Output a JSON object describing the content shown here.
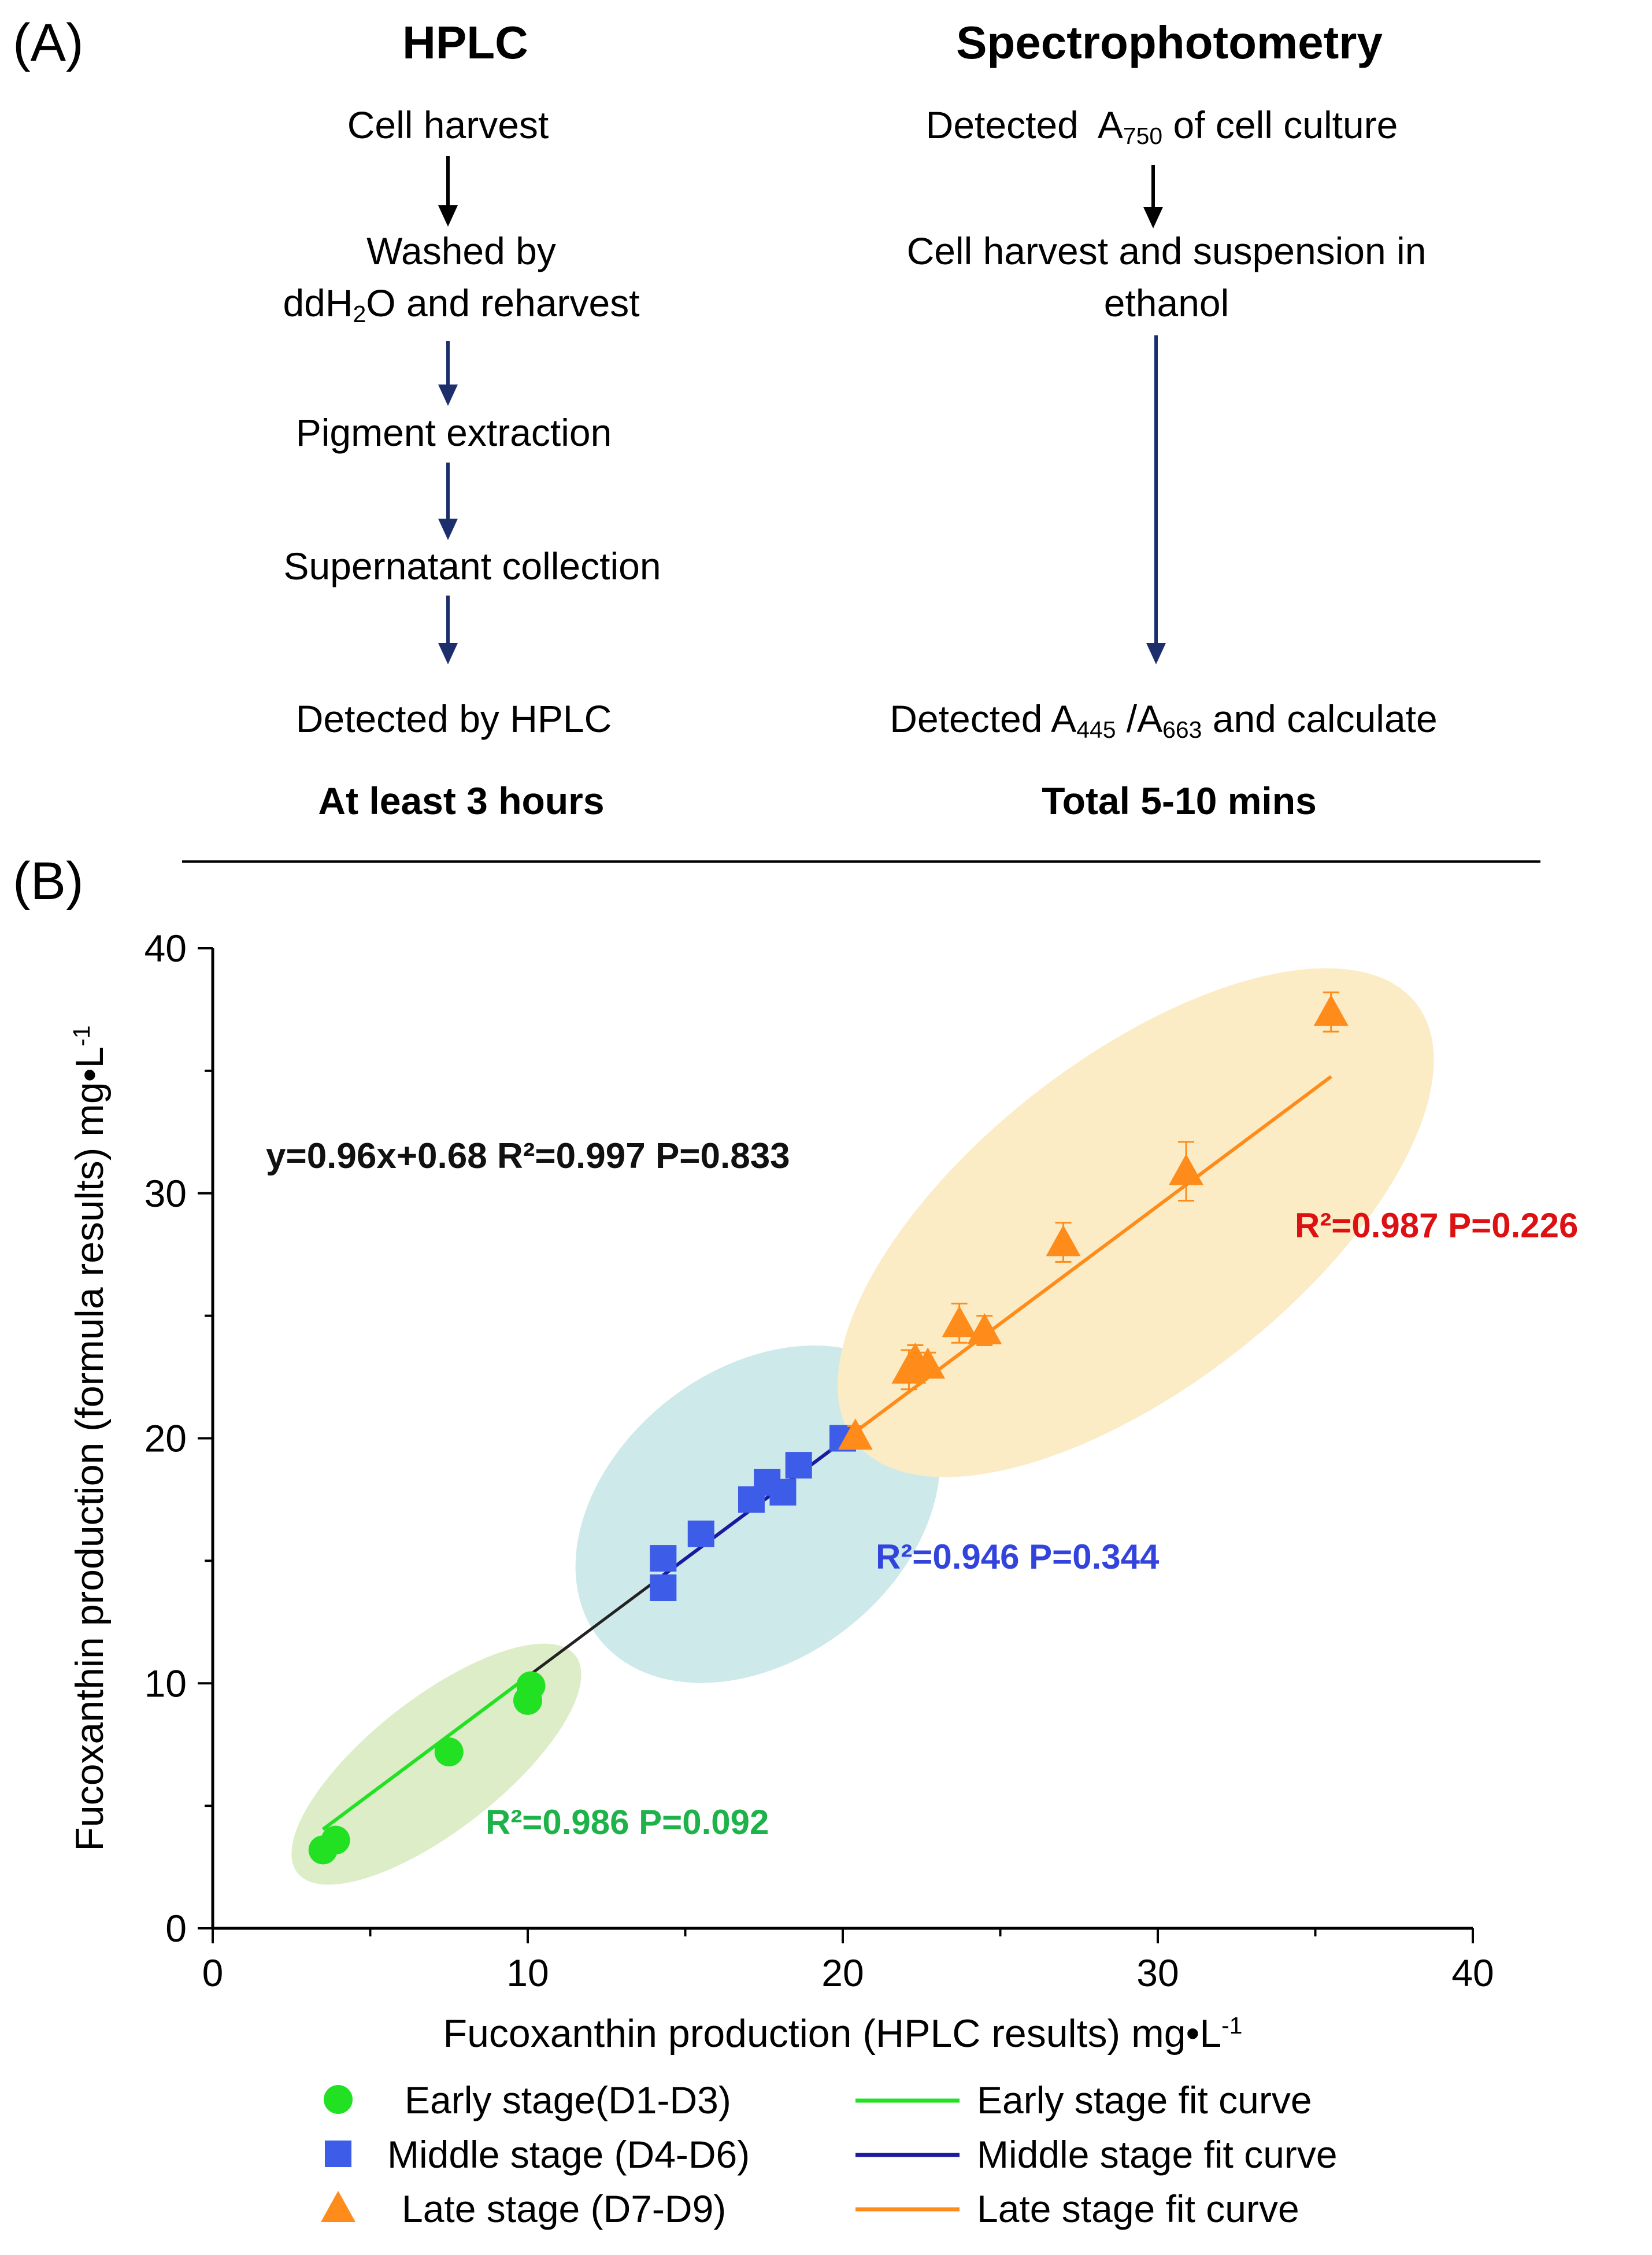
{
  "panel_a": {
    "label": "(A)",
    "hplc": {
      "heading": "HPLC",
      "steps": [
        "Cell harvest",
        "Washed by",
        "and reharvest",
        "Pigment extraction",
        "Supernatant collection",
        "Detected by HPLC"
      ],
      "dd_prefix": "ddH",
      "dd_sub": "2",
      "dd_o": "O",
      "time": "At least 3 hours"
    },
    "spectro": {
      "heading": "Spectrophotometry",
      "step1_prefix": "Detected  A",
      "step1_sub": "750",
      "step1_suffix": " of cell culture",
      "step2_line1": "Cell harvest and suspension in",
      "step2_line2": "ethanol",
      "step3_prefix": "Detected A",
      "step3_sub1": "445",
      "step3_mid": " /A",
      "step3_sub2": "663",
      "step3_suffix": " and calculate",
      "time": "Total 5-10 mins"
    },
    "arrow_colors": {
      "black": "#000000",
      "navy": "#1c2e6b"
    }
  },
  "panel_b": {
    "label": "(B)",
    "x_label": "Fucoxanthin production (HPLC results) mg•L",
    "x_label_sup": "-1",
    "y_label": "Fucoxanthin production (formula results) mg•L",
    "y_label_sup": "-1",
    "equation": "y=0.96x+0.68 R²=0.997  P=0.833",
    "r2_early": "R²=0.986 P=0.092",
    "r2_middle": "R²=0.946 P=0.344",
    "r2_late": "R²=0.987 P=0.226",
    "colors": {
      "early": "#22e022",
      "middle": "#3d5ce8",
      "late": "#ff8c1a",
      "early_label": "#1db34a",
      "middle_label": "#3344dd",
      "late_label": "#dd1111",
      "early_ellipse": "#dcedc8",
      "middle_ellipse": "#cde9ea",
      "late_ellipse": "#fbecc6",
      "overall_fit": "#222222",
      "middle_fit": "#1a1aa0"
    },
    "legend": {
      "early_marker": "Early stage(D1-D3)",
      "middle_marker": "Middle stage (D4-D6)",
      "late_marker": "Late stage (D7-D9)",
      "early_fit": "Early stage fit curve",
      "middle_fit": "Middle stage fit curve",
      "late_fit": "Late stage fit curve"
    }
  },
  "chart_data": {
    "type": "scatter",
    "title": "",
    "xlabel": "Fucoxanthin production (HPLC results) mg•L-1",
    "ylabel": "Fucoxanthin production (formula results) mg•L-1",
    "xlim": [
      0,
      40
    ],
    "ylim": [
      0,
      40
    ],
    "x_ticks": [
      0,
      10,
      20,
      30,
      40
    ],
    "y_ticks": [
      0,
      10,
      20,
      30,
      40
    ],
    "overall_fit": {
      "slope": 0.96,
      "intercept": 0.68,
      "x_range": [
        3.5,
        35.5
      ]
    },
    "series": [
      {
        "name": "Early stage(D1-D3)",
        "marker": "circle",
        "x": [
          3.5,
          3.9,
          7.5,
          10.0,
          10.1
        ],
        "y": [
          3.2,
          3.6,
          7.2,
          9.3,
          9.9
        ],
        "err": [
          0.2,
          0.2,
          0.2,
          0.3,
          0.2
        ],
        "fit_range": [
          3.5,
          10.1
        ]
      },
      {
        "name": "Middle stage (D4-D6)",
        "marker": "square",
        "x": [
          14.3,
          14.3,
          15.5,
          17.1,
          17.6,
          18.1,
          18.6,
          20.0
        ],
        "y": [
          13.9,
          15.1,
          16.1,
          17.5,
          18.2,
          17.8,
          18.9,
          20.0
        ],
        "err": [
          0.3,
          0.3,
          0.3,
          0.4,
          0.4,
          0.4,
          0.4,
          0.4
        ],
        "fit_range": [
          14.3,
          20.0
        ]
      },
      {
        "name": "Late stage (D7-D9)",
        "marker": "triangle",
        "x": [
          20.4,
          22.1,
          22.3,
          22.7,
          23.7,
          24.5,
          27.0,
          30.9,
          35.5
        ],
        "y": [
          20.1,
          22.8,
          23.2,
          23.0,
          24.7,
          24.4,
          28.0,
          30.9,
          37.4
        ],
        "err": [
          0.4,
          0.8,
          0.6,
          0.5,
          0.8,
          0.6,
          0.8,
          1.2,
          0.8
        ],
        "fit_range": [
          20.4,
          35.5
        ]
      }
    ]
  }
}
